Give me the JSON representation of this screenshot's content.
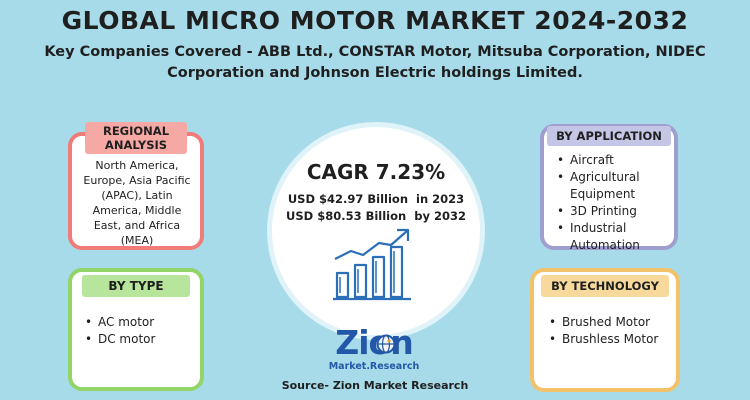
{
  "header": {
    "title": "GLOBAL MICRO MOTOR MARKET 2024-2032",
    "subtitle": "Key Companies Covered - ABB Ltd., CONSTAR Motor, Mitsuba Corporation, NIDEC Corporation and Johnson Electric holdings Limited."
  },
  "regional": {
    "label": "REGIONAL ANALYSIS",
    "text": "North America, Europe, Asia Pacific (APAC), Latin America, Middle East, and Africa (MEA)",
    "border_color": "#f07b78"
  },
  "type": {
    "label": "BY TYPE",
    "items": [
      "AC motor",
      "DC motor"
    ],
    "border_color": "#93d469"
  },
  "application": {
    "label": "BY APPLICATION",
    "items": [
      "Aircraft",
      "Agricultural Equipment",
      "3D Printing",
      "Industrial Automation"
    ],
    "border_color": "#9f9fcf"
  },
  "technology": {
    "label": "BY TECHNOLOGY",
    "items": [
      "Brushed Motor",
      "Brushless Motor"
    ],
    "border_color": "#f2c26b"
  },
  "center": {
    "cagr": "CAGR 7.23%",
    "value_2023": "USD $42.97 Billion  in 2023",
    "value_2032": "USD $80.53 Billion  by 2032",
    "icon": "bar-chart-growth-icon"
  },
  "logo": {
    "name": "Zion",
    "sub": "Market.Research"
  },
  "footer": {
    "source": "Source- Zion Market Research"
  },
  "colors": {
    "background": "#a7dbe9",
    "accent_blue": "#2357a8"
  }
}
